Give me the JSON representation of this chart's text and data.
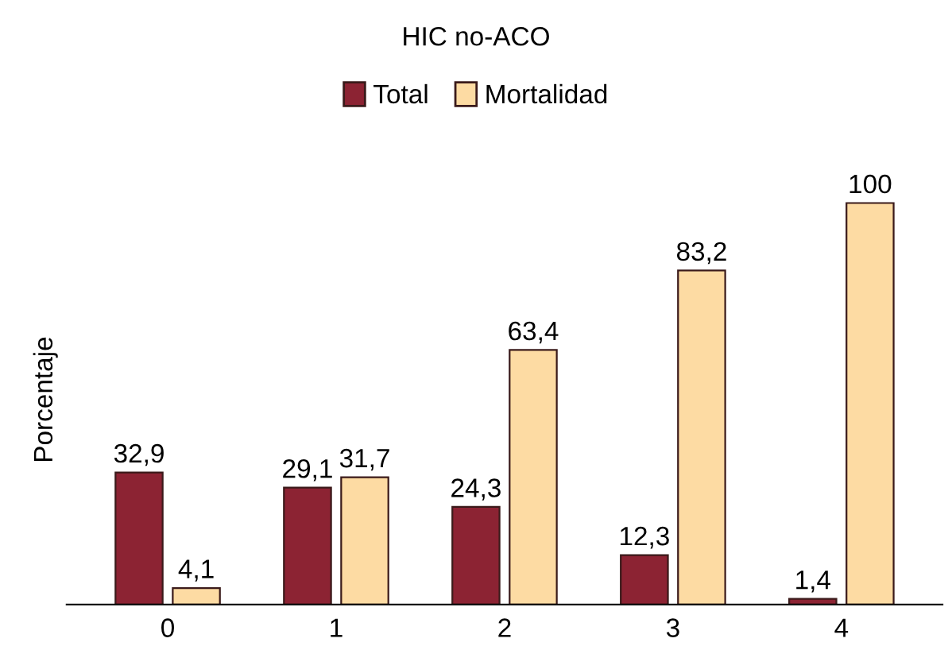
{
  "chart_data": {
    "type": "bar",
    "title": "HIC no-ACO",
    "ylabel": "Porcentaje",
    "categories": [
      "0",
      "1",
      "2",
      "3",
      "4"
    ],
    "series": [
      {
        "name": "Total",
        "color": "#8c2333",
        "values": [
          32.9,
          29.1,
          24.3,
          12.3,
          1.4
        ],
        "value_labels": [
          "32,9",
          "29,1",
          "24,3",
          "12,3",
          "1,4"
        ]
      },
      {
        "name": "Mortalidad",
        "color": "#fddba3",
        "values": [
          4.1,
          31.7,
          63.4,
          83.2,
          100
        ],
        "value_labels": [
          "4,1",
          "31,7",
          "63,4",
          "83,2",
          "100"
        ]
      }
    ],
    "legend": "top",
    "grid": false,
    "tick_labels": "x"
  }
}
